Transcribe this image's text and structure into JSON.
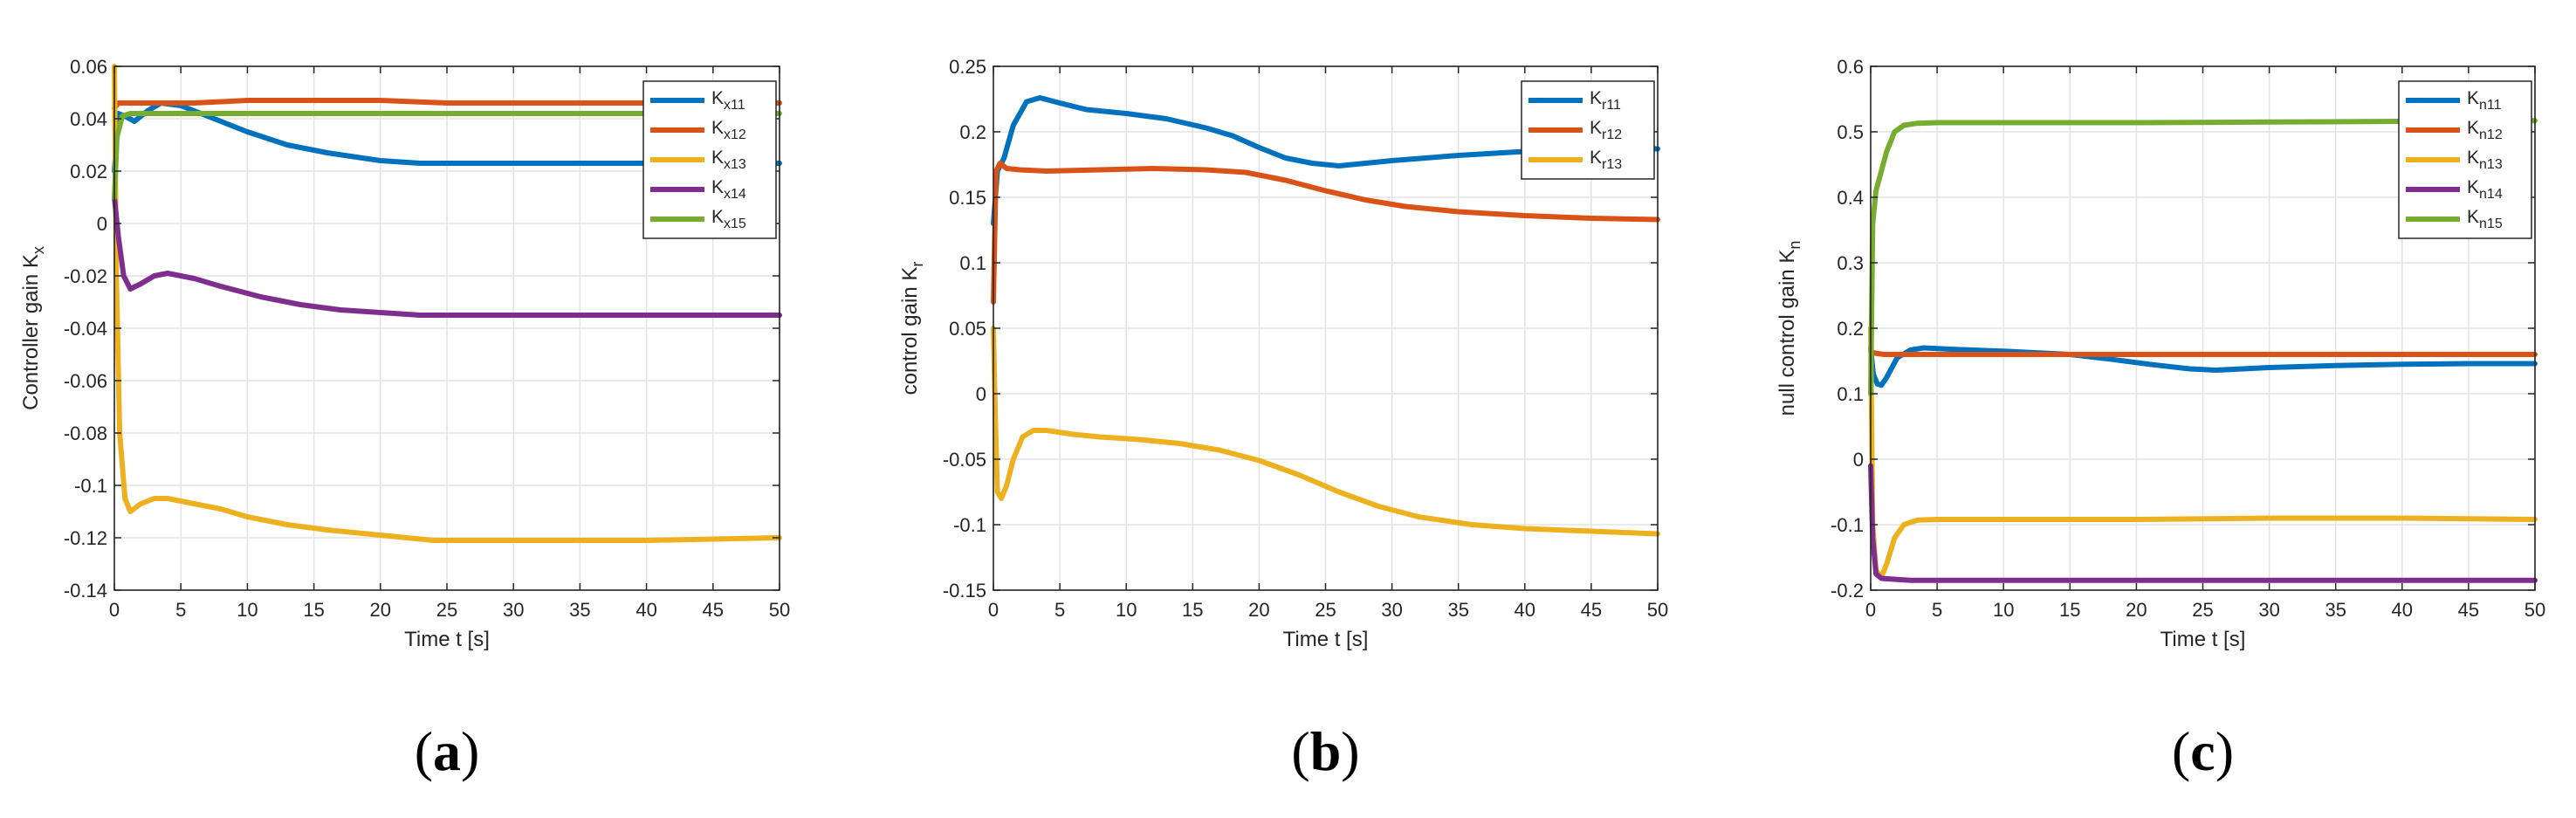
{
  "colors": {
    "blue": "#0072BD",
    "orange": "#D95319",
    "yellow": "#EDB120",
    "purple": "#7E2F8E",
    "green": "#77AC30",
    "grid": "#e3e3e3",
    "axis": "#262626"
  },
  "chart_data": [
    {
      "type": "line",
      "panel_label": "(a)",
      "panel_letter": "a",
      "xlabel": "Time t [s]",
      "ylabel_main": "Controller gain K",
      "ylabel_sub": "x",
      "xlim": [
        0,
        50
      ],
      "ylim": [
        -0.14,
        0.06
      ],
      "xticks": [
        0,
        5,
        10,
        15,
        20,
        25,
        30,
        35,
        40,
        45,
        50
      ],
      "yticks": [
        -0.14,
        -0.12,
        -0.1,
        -0.08,
        -0.06,
        -0.04,
        -0.02,
        0,
        0.02,
        0.04,
        0.06
      ],
      "ytick_labels": [
        "-0.14",
        "-0.12",
        "-0.1",
        "-0.08",
        "-0.06",
        "-0.04",
        "-0.02",
        "0",
        "0.02",
        "0.04",
        "0.06"
      ],
      "legend_position": "top-right",
      "series": [
        {
          "name": "K",
          "sub": "x11",
          "color": "blue",
          "x": [
            0,
            0.3,
            0.8,
            1.5,
            2.5,
            3.5,
            5,
            7,
            10,
            13,
            16,
            20,
            23,
            30,
            40,
            50
          ],
          "y": [
            0.02,
            0.042,
            0.041,
            0.039,
            0.043,
            0.046,
            0.045,
            0.041,
            0.035,
            0.03,
            0.027,
            0.024,
            0.023,
            0.023,
            0.023,
            0.023
          ]
        },
        {
          "name": "K",
          "sub": "x12",
          "color": "orange",
          "x": [
            0,
            0.3,
            1,
            3,
            6,
            10,
            15,
            20,
            25,
            30,
            40,
            50
          ],
          "y": [
            0.044,
            0.046,
            0.046,
            0.046,
            0.046,
            0.047,
            0.047,
            0.047,
            0.046,
            0.046,
            0.046,
            0.046
          ]
        },
        {
          "name": "K",
          "sub": "x13",
          "color": "yellow",
          "x": [
            0,
            0.15,
            0.4,
            0.8,
            1.2,
            2,
            3,
            4,
            6,
            8,
            10,
            13,
            16,
            20,
            24,
            30,
            40,
            50
          ],
          "y": [
            0.06,
            -0.02,
            -0.08,
            -0.105,
            -0.11,
            -0.107,
            -0.105,
            -0.105,
            -0.107,
            -0.109,
            -0.112,
            -0.115,
            -0.117,
            -0.119,
            -0.121,
            -0.121,
            -0.121,
            -0.12
          ]
        },
        {
          "name": "K",
          "sub": "x14",
          "color": "purple",
          "x": [
            0,
            0.3,
            0.7,
            1.2,
            2,
            3,
            4,
            6,
            8,
            11,
            14,
            17,
            20,
            23,
            30,
            40,
            50
          ],
          "y": [
            0.01,
            -0.005,
            -0.02,
            -0.025,
            -0.023,
            -0.02,
            -0.019,
            -0.021,
            -0.024,
            -0.028,
            -0.031,
            -0.033,
            -0.034,
            -0.035,
            -0.035,
            -0.035,
            -0.035
          ]
        },
        {
          "name": "K",
          "sub": "x15",
          "color": "green",
          "x": [
            0,
            0.2,
            0.6,
            1.2,
            2,
            5,
            10,
            20,
            30,
            40,
            50
          ],
          "y": [
            0.01,
            0.033,
            0.041,
            0.042,
            0.042,
            0.042,
            0.042,
            0.042,
            0.042,
            0.042,
            0.042
          ]
        }
      ]
    },
    {
      "type": "line",
      "panel_label": "(b)",
      "panel_letter": "b",
      "xlabel": "Time t [s]",
      "ylabel_main": "control gain K",
      "ylabel_sub": "r",
      "xlim": [
        0,
        50
      ],
      "ylim": [
        -0.15,
        0.25
      ],
      "xticks": [
        0,
        5,
        10,
        15,
        20,
        25,
        30,
        35,
        40,
        45,
        50
      ],
      "yticks": [
        -0.15,
        -0.1,
        -0.05,
        0,
        0.05,
        0.1,
        0.15,
        0.2,
        0.25
      ],
      "ytick_labels": [
        "-0.15",
        "-0.1",
        "-0.05",
        "0",
        "0.05",
        "0.1",
        "0.15",
        "0.2",
        "0.25"
      ],
      "legend_position": "top-right",
      "series": [
        {
          "name": "K",
          "sub": "r11",
          "color": "blue",
          "x": [
            0,
            0.3,
            0.8,
            1.5,
            2.5,
            3.5,
            5,
            7,
            10,
            13,
            16,
            18,
            20,
            22,
            24,
            26,
            28,
            30,
            35,
            40,
            45,
            50
          ],
          "y": [
            0.13,
            0.17,
            0.18,
            0.205,
            0.223,
            0.226,
            0.222,
            0.217,
            0.214,
            0.21,
            0.203,
            0.197,
            0.188,
            0.18,
            0.176,
            0.174,
            0.176,
            0.178,
            0.182,
            0.185,
            0.187,
            0.187
          ]
        },
        {
          "name": "K",
          "sub": "r12",
          "color": "orange",
          "x": [
            0,
            0.2,
            0.5,
            1,
            2,
            4,
            8,
            12,
            16,
            19,
            22,
            25,
            28,
            31,
            35,
            40,
            45,
            50
          ],
          "y": [
            0.07,
            0.17,
            0.176,
            0.172,
            0.171,
            0.17,
            0.171,
            0.172,
            0.171,
            0.169,
            0.163,
            0.155,
            0.148,
            0.143,
            0.139,
            0.136,
            0.134,
            0.133
          ]
        },
        {
          "name": "K",
          "sub": "r13",
          "color": "yellow",
          "x": [
            0,
            0.15,
            0.3,
            0.6,
            1,
            1.5,
            2.2,
            3,
            4,
            6,
            8,
            11,
            14,
            17,
            20,
            23,
            26,
            29,
            32,
            36,
            40,
            45,
            50
          ],
          "y": [
            0.05,
            -0.02,
            -0.075,
            -0.08,
            -0.07,
            -0.05,
            -0.033,
            -0.028,
            -0.028,
            -0.031,
            -0.033,
            -0.035,
            -0.038,
            -0.043,
            -0.051,
            -0.062,
            -0.075,
            -0.086,
            -0.094,
            -0.1,
            -0.103,
            -0.105,
            -0.107
          ]
        }
      ]
    },
    {
      "type": "line",
      "panel_label": "(c)",
      "panel_letter": "c",
      "xlabel": "Time t [s]",
      "ylabel_main": "null control gain K",
      "ylabel_sub": "n",
      "xlim": [
        0,
        50
      ],
      "ylim": [
        -0.2,
        0.6
      ],
      "xticks": [
        0,
        5,
        10,
        15,
        20,
        25,
        30,
        35,
        40,
        45,
        50
      ],
      "yticks": [
        -0.2,
        -0.1,
        0,
        0.1,
        0.2,
        0.3,
        0.4,
        0.5,
        0.6
      ],
      "ytick_labels": [
        "-0.2",
        "-0.1",
        "0",
        "0.1",
        "0.2",
        "0.3",
        "0.4",
        "0.5",
        "0.6"
      ],
      "legend_position": "top-right",
      "series": [
        {
          "name": "K",
          "sub": "n11",
          "color": "blue",
          "x": [
            0,
            0.2,
            0.5,
            0.8,
            1.2,
            2,
            3,
            4,
            6,
            10,
            15,
            18,
            21,
            24,
            26,
            30,
            35,
            40,
            45,
            50
          ],
          "y": [
            0.17,
            0.13,
            0.115,
            0.113,
            0.125,
            0.155,
            0.167,
            0.17,
            0.168,
            0.165,
            0.16,
            0.153,
            0.145,
            0.138,
            0.136,
            0.14,
            0.143,
            0.145,
            0.146,
            0.146
          ]
        },
        {
          "name": "K",
          "sub": "n12",
          "color": "orange",
          "x": [
            0,
            0.3,
            1,
            3,
            10,
            20,
            30,
            40,
            50
          ],
          "y": [
            0.165,
            0.162,
            0.16,
            0.16,
            0.16,
            0.16,
            0.16,
            0.16,
            0.16
          ]
        },
        {
          "name": "K",
          "sub": "n13",
          "color": "yellow",
          "x": [
            0,
            0.15,
            0.4,
            0.8,
            1.2,
            1.8,
            2.5,
            3.5,
            5,
            10,
            20,
            30,
            40,
            50
          ],
          "y": [
            0.2,
            -0.1,
            -0.17,
            -0.18,
            -0.16,
            -0.12,
            -0.1,
            -0.093,
            -0.092,
            -0.092,
            -0.092,
            -0.09,
            -0.09,
            -0.092
          ]
        },
        {
          "name": "K",
          "sub": "n14",
          "color": "purple",
          "x": [
            0,
            0.15,
            0.4,
            0.8,
            1.5,
            3,
            10,
            20,
            30,
            40,
            50
          ],
          "y": [
            -0.01,
            -0.12,
            -0.175,
            -0.182,
            -0.183,
            -0.185,
            -0.185,
            -0.185,
            -0.185,
            -0.185,
            -0.185
          ]
        },
        {
          "name": "K",
          "sub": "n15",
          "color": "green",
          "x": [
            0,
            0.15,
            0.4,
            0.8,
            1.2,
            1.8,
            2.5,
            3.5,
            5,
            10,
            20,
            30,
            40,
            50
          ],
          "y": [
            0.1,
            0.36,
            0.41,
            0.44,
            0.47,
            0.5,
            0.51,
            0.513,
            0.514,
            0.514,
            0.514,
            0.515,
            0.516,
            0.517
          ]
        }
      ]
    }
  ]
}
